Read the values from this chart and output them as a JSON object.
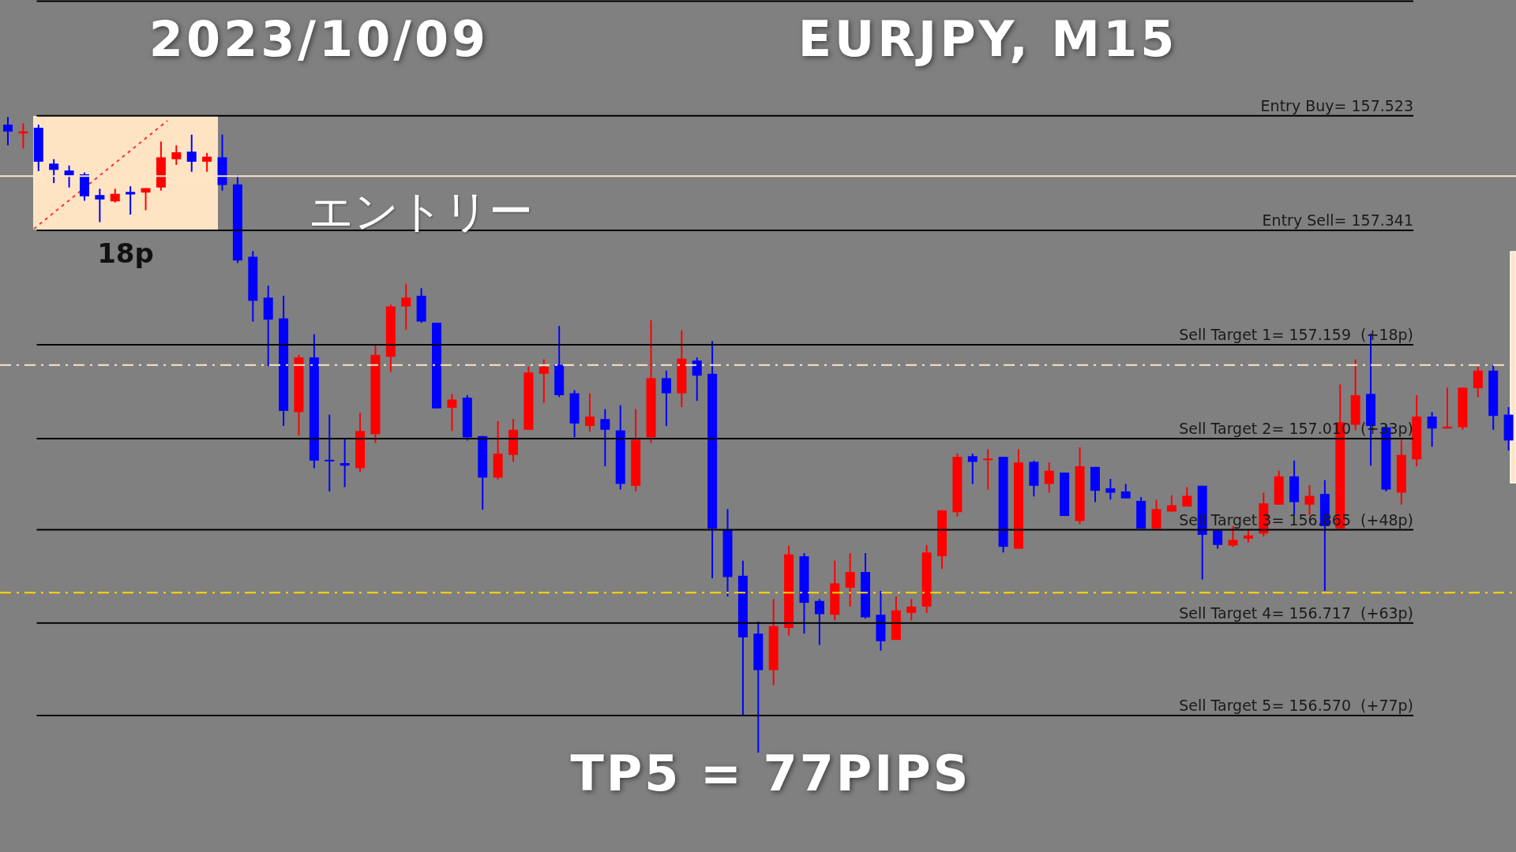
{
  "chart_data": {
    "type": "candlestick",
    "title": "2023/10/09",
    "subtitle": "EURJPY, M15",
    "annotations": [
      "18p",
      "エントリー",
      "TP5 = 77PIPS"
    ],
    "categories": [
      null,
      null,
      null,
      null,
      null,
      null,
      null,
      null,
      null,
      null,
      null,
      null,
      null,
      null,
      null,
      null,
      null,
      null,
      null,
      null,
      null,
      null,
      null,
      null,
      null,
      null,
      null,
      null,
      null,
      null,
      null,
      null,
      null,
      null,
      null,
      null,
      null,
      null,
      null,
      null,
      null,
      null,
      null,
      null,
      null,
      null,
      null,
      null,
      null,
      null,
      null,
      null,
      null,
      null,
      null,
      null,
      null,
      null,
      null,
      null,
      null,
      null,
      null,
      null,
      null,
      null,
      null,
      null,
      null,
      null,
      null,
      null,
      null,
      null,
      null,
      null,
      null,
      null,
      null,
      null,
      null,
      null,
      null,
      null,
      null,
      null,
      null,
      null,
      null,
      null,
      null,
      null,
      null,
      null,
      null,
      null,
      null,
      null,
      null
    ],
    "ohlc": [
      [
        157.509,
        157.521,
        157.476,
        157.498
      ],
      [
        157.495,
        157.511,
        157.471,
        157.498
      ],
      [
        157.504,
        157.509,
        157.435,
        157.45
      ],
      [
        157.447,
        157.454,
        157.416,
        157.437
      ],
      [
        157.436,
        157.444,
        157.409,
        157.428
      ],
      [
        157.43,
        157.433,
        157.388,
        157.395
      ],
      [
        157.397,
        157.407,
        157.354,
        157.39
      ],
      [
        157.387,
        157.407,
        157.385,
        157.399
      ],
      [
        157.402,
        157.411,
        157.366,
        157.398
      ],
      [
        157.401,
        157.408,
        157.373,
        157.408
      ],
      [
        157.409,
        157.482,
        157.404,
        157.457
      ],
      [
        157.454,
        157.476,
        157.445,
        157.465
      ],
      [
        157.466,
        157.493,
        157.434,
        157.45
      ],
      [
        157.45,
        157.464,
        157.434,
        157.458
      ],
      [
        157.457,
        157.493,
        157.404,
        157.413
      ],
      [
        157.414,
        157.429,
        157.289,
        157.293
      ],
      [
        157.299,
        157.308,
        157.196,
        157.229
      ],
      [
        157.234,
        157.253,
        157.125,
        157.199
      ],
      [
        157.201,
        157.237,
        157.03,
        157.054
      ],
      [
        157.052,
        157.143,
        157.015,
        157.139
      ],
      [
        157.139,
        157.176,
        156.963,
        156.975
      ],
      [
        156.975,
        157.048,
        156.926,
        156.973
      ],
      [
        156.971,
        157.01,
        156.933,
        156.967
      ],
      [
        156.963,
        157.051,
        156.957,
        157.022
      ],
      [
        157.017,
        157.158,
        157.003,
        157.143
      ],
      [
        157.14,
        157.223,
        157.116,
        157.22
      ],
      [
        157.22,
        157.256,
        157.183,
        157.234
      ],
      [
        157.237,
        157.249,
        157.194,
        157.196
      ],
      [
        157.194,
        157.194,
        157.058,
        157.058
      ],
      [
        157.059,
        157.081,
        157.022,
        157.072
      ],
      [
        157.075,
        157.079,
        157.007,
        157.012
      ],
      [
        157.014,
        157.014,
        156.897,
        156.948
      ],
      [
        156.948,
        157.038,
        156.945,
        156.986
      ],
      [
        156.984,
        157.041,
        156.973,
        157.024
      ],
      [
        157.024,
        157.124,
        157.024,
        157.115
      ],
      [
        157.113,
        157.136,
        157.067,
        157.124
      ],
      [
        157.127,
        157.189,
        157.076,
        157.079
      ],
      [
        157.082,
        157.087,
        157.012,
        157.034
      ],
      [
        157.03,
        157.082,
        157.021,
        157.045
      ],
      [
        157.041,
        157.057,
        156.966,
        157.024
      ],
      [
        157.023,
        157.063,
        156.929,
        156.938
      ],
      [
        156.935,
        157.057,
        156.926,
        157.008
      ],
      [
        157.012,
        157.198,
        157.003,
        157.106
      ],
      [
        157.106,
        157.118,
        157.03,
        157.082
      ],
      [
        157.082,
        157.182,
        157.06,
        157.137
      ],
      [
        157.134,
        157.139,
        157.07,
        157.11
      ],
      [
        157.113,
        157.165,
        156.788,
        156.867
      ],
      [
        156.865,
        156.898,
        156.759,
        156.79
      ],
      [
        156.792,
        156.816,
        156.571,
        156.694
      ],
      [
        156.7,
        156.719,
        156.511,
        156.642
      ],
      [
        156.642,
        156.755,
        156.618,
        156.712
      ],
      [
        156.709,
        156.84,
        156.697,
        156.826
      ],
      [
        156.823,
        156.828,
        156.7,
        156.749
      ],
      [
        156.752,
        156.755,
        156.682,
        156.731
      ],
      [
        156.73,
        156.816,
        156.721,
        156.78
      ],
      [
        156.773,
        156.828,
        156.743,
        156.798
      ],
      [
        156.798,
        156.828,
        156.724,
        156.726
      ],
      [
        156.73,
        156.768,
        156.673,
        156.688
      ],
      [
        156.69,
        156.759,
        156.69,
        156.737
      ],
      [
        156.733,
        156.755,
        156.721,
        156.743
      ],
      [
        156.743,
        156.841,
        156.733,
        156.829
      ],
      [
        156.823,
        156.896,
        156.803,
        156.896
      ],
      [
        156.893,
        156.986,
        156.886,
        156.981
      ],
      [
        156.982,
        156.986,
        156.938,
        156.973
      ],
      [
        156.975,
        156.993,
        156.929,
        156.977
      ],
      [
        156.981,
        156.981,
        156.829,
        156.838
      ],
      [
        156.835,
        156.993,
        156.835,
        156.972
      ],
      [
        156.973,
        156.975,
        156.918,
        156.935
      ],
      [
        156.938,
        156.972,
        156.924,
        156.959
      ],
      [
        156.956,
        156.956,
        156.887,
        156.887
      ],
      [
        156.879,
        156.996,
        156.874,
        156.966
      ],
      [
        156.965,
        156.965,
        156.909,
        156.927
      ],
      [
        156.931,
        156.946,
        156.913,
        156.924
      ],
      [
        156.926,
        156.938,
        156.915,
        156.915
      ],
      [
        156.911,
        156.917,
        156.867,
        156.867
      ],
      [
        156.867,
        156.913,
        156.867,
        156.898
      ],
      [
        156.894,
        156.92,
        156.894,
        156.904
      ],
      [
        156.902,
        156.933,
        156.902,
        156.919
      ],
      [
        156.935,
        156.935,
        156.786,
        156.857
      ],
      [
        156.864,
        156.864,
        156.835,
        156.841
      ],
      [
        156.84,
        156.871,
        156.838,
        156.849
      ],
      [
        156.851,
        156.864,
        156.845,
        156.856
      ],
      [
        156.859,
        156.924,
        156.854,
        156.907
      ],
      [
        156.905,
        156.959,
        156.905,
        156.95
      ],
      [
        156.95,
        156.975,
        156.889,
        156.909
      ],
      [
        156.905,
        156.936,
        156.888,
        156.919
      ],
      [
        156.922,
        156.944,
        156.768,
        156.871
      ],
      [
        156.867,
        157.096,
        156.867,
        157.036
      ],
      [
        157.032,
        157.136,
        157.023,
        157.079
      ],
      [
        157.081,
        157.177,
        156.967,
        157.03
      ],
      [
        157.028,
        157.032,
        156.926,
        156.929
      ],
      [
        156.924,
        157.008,
        156.905,
        156.984
      ],
      [
        156.977,
        157.079,
        156.966,
        157.045
      ],
      [
        157.045,
        157.052,
        156.997,
        157.026
      ],
      [
        157.026,
        157.091,
        157.026,
        157.029
      ],
      [
        157.028,
        157.091,
        157.024,
        157.091
      ],
      [
        157.09,
        157.124,
        157.076,
        157.118
      ],
      [
        157.118,
        157.127,
        157.024,
        157.046
      ],
      [
        157.048,
        157.06,
        156.991,
        157.007
      ]
    ],
    "colors": [
      "#0000ff",
      "#ff0000",
      "#0000ff",
      "#0000ff",
      "#0000ff",
      "#0000ff",
      "#0000ff",
      "#ff0000",
      "#0000ff",
      "#ff0000",
      "#ff0000",
      "#ff0000",
      "#0000ff",
      "#ff0000",
      "#0000ff",
      "#0000ff",
      "#0000ff",
      "#0000ff",
      "#0000ff",
      "#ff0000",
      "#0000ff",
      "#0000ff",
      "#0000ff",
      "#ff0000",
      "#ff0000",
      "#ff0000",
      "#ff0000",
      "#0000ff",
      "#0000ff",
      "#ff0000",
      "#0000ff",
      "#0000ff",
      "#ff0000",
      "#ff0000",
      "#ff0000",
      "#ff0000",
      "#0000ff",
      "#0000ff",
      "#ff0000",
      "#0000ff",
      "#0000ff",
      "#ff0000",
      "#ff0000",
      "#0000ff",
      "#ff0000",
      "#0000ff",
      "#0000ff",
      "#0000ff",
      "#0000ff",
      "#0000ff",
      "#ff0000",
      "#ff0000",
      "#0000ff",
      "#0000ff",
      "#ff0000",
      "#ff0000",
      "#0000ff",
      "#0000ff",
      "#ff0000",
      "#ff0000",
      "#ff0000",
      "#ff0000",
      "#ff0000",
      "#0000ff",
      "#ff0000",
      "#0000ff",
      "#ff0000",
      "#0000ff",
      "#ff0000",
      "#0000ff",
      "#ff0000",
      "#0000ff",
      "#0000ff",
      "#0000ff",
      "#0000ff",
      "#ff0000",
      "#ff0000",
      "#ff0000",
      "#0000ff",
      "#0000ff",
      "#ff0000",
      "#ff0000",
      "#ff0000",
      "#ff0000",
      "#0000ff",
      "#ff0000",
      "#0000ff",
      "#ff0000",
      "#ff0000",
      "#0000ff",
      "#0000ff",
      "#ff0000",
      "#ff0000",
      "#0000ff",
      "#ff0000",
      "#ff0000",
      "#ff0000",
      "#0000ff",
      "#0000ff"
    ],
    "ylim": [
      156.353,
      157.707
    ],
    "ref_lines": [
      {
        "axis": "y",
        "value": 157.705,
        "color": "#000000"
      },
      {
        "axis": "y",
        "value": 157.523,
        "label": "Entry Buy= 157.523",
        "color": "#000000"
      },
      {
        "axis": "y",
        "value": 157.427,
        "color": "#fce5c8"
      },
      {
        "axis": "y",
        "value": 157.341,
        "label": "Entry Sell= 157.341",
        "color": "#000000"
      },
      {
        "axis": "y",
        "value": 157.159,
        "label": "Sell Target 1= 157.159  (+18p)",
        "color": "#000000"
      },
      {
        "axis": "y",
        "value": 157.127,
        "color": "#fce5c8",
        "line_style": "dashed"
      },
      {
        "axis": "y",
        "value": 157.01,
        "label": "Sell Target 2= 157.010  (+33p)",
        "color": "#000000"
      },
      {
        "axis": "y",
        "value": 156.865,
        "label": "Sell Target 3= 156.865  (+48p)",
        "color": "#000000"
      },
      {
        "axis": "y",
        "value": 156.765,
        "color": "#ffd700",
        "line_style": "dashed"
      },
      {
        "axis": "y",
        "value": 156.717,
        "label": "Sell Target 4= 156.717  (+63p)",
        "color": "#000000"
      },
      {
        "axis": "y",
        "value": 156.57,
        "label": "Sell Target 5= 156.570  (+77p)",
        "color": "#000000"
      }
    ],
    "tick_labels": false,
    "legend": false,
    "grid": false
  }
}
